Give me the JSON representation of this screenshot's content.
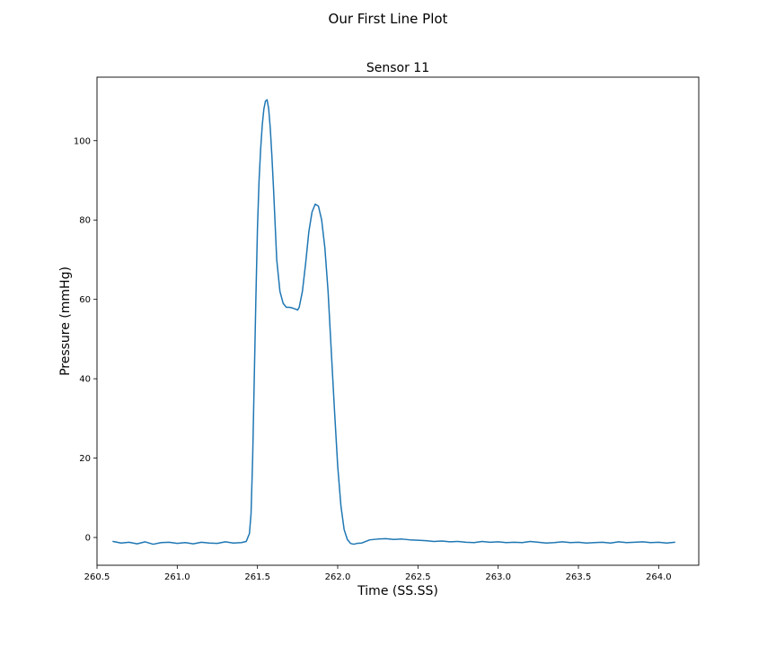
{
  "figure": {
    "suptitle": "Our First Line Plot"
  },
  "chart_data": {
    "type": "line",
    "title": "Sensor 11",
    "xlabel": "Time (SS.SS)",
    "ylabel": "Pressure (mmHg)",
    "xlim": [
      260.5,
      264.25
    ],
    "ylim": [
      -7,
      116
    ],
    "xticks": [
      260.5,
      261.0,
      261.5,
      262.0,
      262.5,
      263.0,
      263.5,
      264.0
    ],
    "xtick_labels": [
      "260.5",
      "261.0",
      "261.5",
      "262.0",
      "262.5",
      "263.0",
      "263.5",
      "264.0"
    ],
    "yticks": [
      0,
      20,
      40,
      60,
      80,
      100
    ],
    "ytick_labels": [
      "0",
      "20",
      "40",
      "60",
      "80",
      "100"
    ],
    "grid": false,
    "series": [
      {
        "color": "#1f77b4",
        "x": [
          260.6,
          260.65,
          260.7,
          260.75,
          260.8,
          260.85,
          260.9,
          260.95,
          261.0,
          261.05,
          261.1,
          261.15,
          261.2,
          261.25,
          261.3,
          261.35,
          261.4,
          261.43,
          261.45,
          261.46,
          261.47,
          261.48,
          261.49,
          261.5,
          261.51,
          261.52,
          261.53,
          261.54,
          261.55,
          261.56,
          261.57,
          261.58,
          261.59,
          261.6,
          261.62,
          261.64,
          261.66,
          261.68,
          261.7,
          261.72,
          261.74,
          261.75,
          261.76,
          261.78,
          261.8,
          261.82,
          261.84,
          261.86,
          261.88,
          261.9,
          261.92,
          261.94,
          261.96,
          261.98,
          262.0,
          262.02,
          262.04,
          262.06,
          262.08,
          262.1,
          262.12,
          262.15,
          262.2,
          262.25,
          262.3,
          262.35,
          262.4,
          262.45,
          262.5,
          262.55,
          262.6,
          262.65,
          262.7,
          262.75,
          262.8,
          262.85,
          262.9,
          262.95,
          263.0,
          263.05,
          263.1,
          263.15,
          263.2,
          263.25,
          263.3,
          263.35,
          263.4,
          263.45,
          263.5,
          263.55,
          263.6,
          263.65,
          263.7,
          263.75,
          263.8,
          263.85,
          263.9,
          263.95,
          264.0,
          264.05,
          264.1
        ],
        "y": [
          -1.0,
          -1.4,
          -1.2,
          -1.6,
          -1.1,
          -1.7,
          -1.3,
          -1.2,
          -1.5,
          -1.3,
          -1.6,
          -1.2,
          -1.4,
          -1.5,
          -1.1,
          -1.4,
          -1.3,
          -1.0,
          1.0,
          6.0,
          20.0,
          40.0,
          60.0,
          78.0,
          90.0,
          98.0,
          104.0,
          108.0,
          110.0,
          110.3,
          108.0,
          103.0,
          96.0,
          88.0,
          70.0,
          62.0,
          59.0,
          58.0,
          58.0,
          57.8,
          57.5,
          57.3,
          58.0,
          62.0,
          69.0,
          77.0,
          82.0,
          84.0,
          83.5,
          80.0,
          73.0,
          62.0,
          47.0,
          32.0,
          18.0,
          8.0,
          2.0,
          -0.5,
          -1.5,
          -1.7,
          -1.5,
          -1.4,
          -0.6,
          -0.4,
          -0.3,
          -0.5,
          -0.4,
          -0.6,
          -0.7,
          -0.8,
          -1.0,
          -0.9,
          -1.1,
          -1.0,
          -1.2,
          -1.3,
          -1.0,
          -1.2,
          -1.1,
          -1.3,
          -1.2,
          -1.3,
          -1.0,
          -1.2,
          -1.4,
          -1.3,
          -1.1,
          -1.3,
          -1.2,
          -1.4,
          -1.3,
          -1.2,
          -1.4,
          -1.1,
          -1.3,
          -1.2,
          -1.1,
          -1.3,
          -1.2,
          -1.4,
          -1.2
        ]
      }
    ]
  }
}
